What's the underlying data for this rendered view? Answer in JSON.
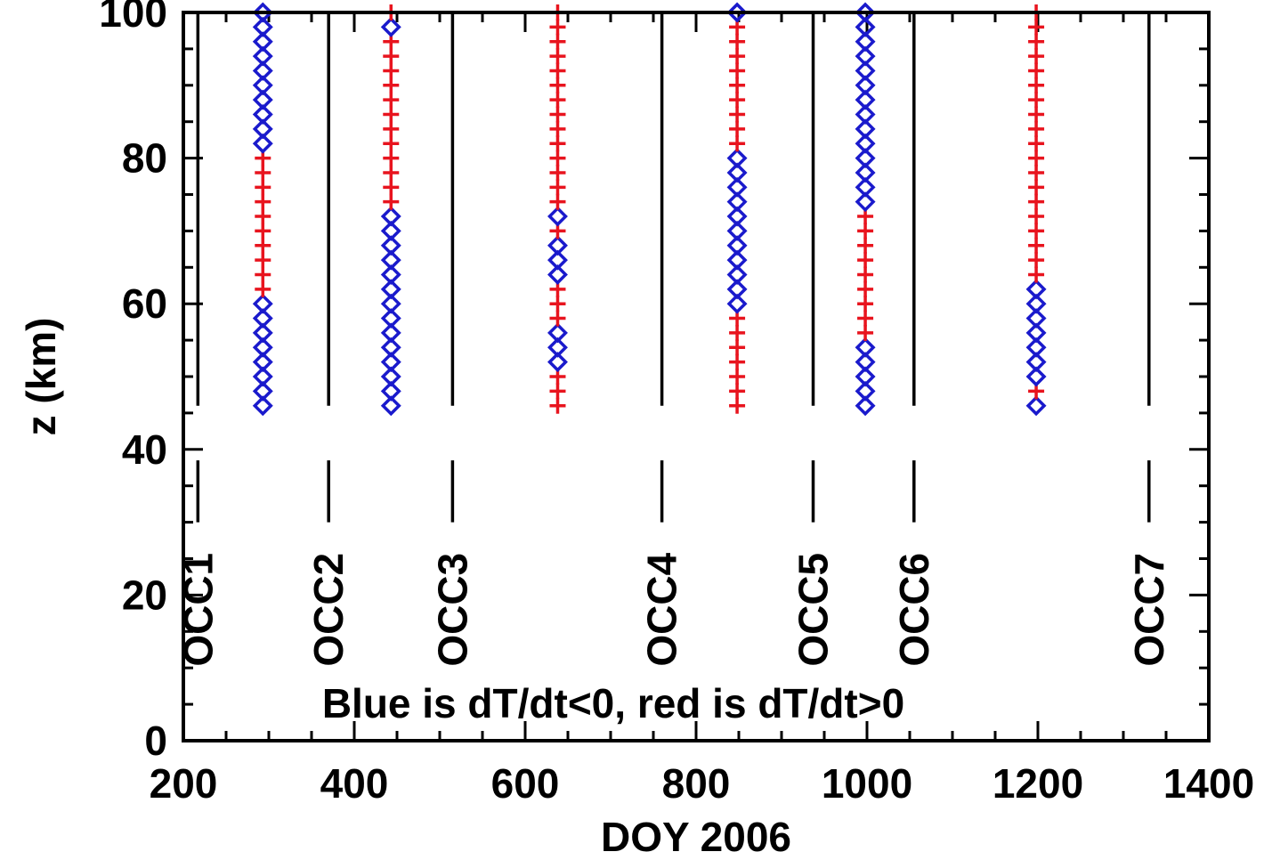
{
  "chart_data": {
    "type": "scatter",
    "title": "",
    "xlabel": "DOY 2006",
    "ylabel": "z (km)",
    "xlim": [
      200,
      1400
    ],
    "ylim": [
      0,
      100
    ],
    "xticks": [
      200,
      400,
      600,
      800,
      1000,
      1200,
      1400
    ],
    "yticks": [
      0,
      20,
      40,
      60,
      80,
      100
    ],
    "x_tick_labels": [
      "200",
      "400",
      "600",
      "800",
      "1000",
      "1200",
      "1400"
    ],
    "y_tick_labels": [
      "0",
      "20",
      "40",
      "60",
      "80",
      "100"
    ],
    "annotation": "Blue is dT/dt<0, red is dT/dt>0",
    "colors": {
      "negative": "#1a1acc",
      "positive": "#e8141e",
      "axis": "#000000"
    },
    "occultations": [
      {
        "label": "OCC1",
        "x": 217
      },
      {
        "label": "OCC2",
        "x": 370
      },
      {
        "label": "OCC3",
        "x": 515
      },
      {
        "label": "OCC4",
        "x": 760
      },
      {
        "label": "OCC5",
        "x": 937
      },
      {
        "label": "OCC6",
        "x": 1055
      },
      {
        "label": "OCC7",
        "x": 1330
      }
    ],
    "series": [
      {
        "x": 293,
        "segments": [
          {
            "from": 46,
            "to": 60,
            "sign": "negative"
          },
          {
            "from": 62,
            "to": 80,
            "sign": "positive"
          },
          {
            "from": 82,
            "to": 100,
            "sign": "negative"
          }
        ]
      },
      {
        "x": 443,
        "segments": [
          {
            "from": 46,
            "to": 72,
            "sign": "negative"
          },
          {
            "from": 74,
            "to": 96,
            "sign": "positive"
          },
          {
            "from": 98,
            "to": 98,
            "sign": "negative"
          },
          {
            "from": 100,
            "to": 100,
            "sign": "positive"
          }
        ]
      },
      {
        "x": 638,
        "segments": [
          {
            "from": 46,
            "to": 50,
            "sign": "positive"
          },
          {
            "from": 52,
            "to": 56,
            "sign": "negative"
          },
          {
            "from": 58,
            "to": 62,
            "sign": "positive"
          },
          {
            "from": 64,
            "to": 68,
            "sign": "negative"
          },
          {
            "from": 70,
            "to": 70,
            "sign": "positive"
          },
          {
            "from": 72,
            "to": 72,
            "sign": "negative"
          },
          {
            "from": 74,
            "to": 100,
            "sign": "positive"
          }
        ]
      },
      {
        "x": 848,
        "segments": [
          {
            "from": 46,
            "to": 58,
            "sign": "positive"
          },
          {
            "from": 60,
            "to": 80,
            "sign": "negative"
          },
          {
            "from": 82,
            "to": 98,
            "sign": "positive"
          },
          {
            "from": 100,
            "to": 100,
            "sign": "negative"
          }
        ]
      },
      {
        "x": 998,
        "segments": [
          {
            "from": 46,
            "to": 54,
            "sign": "negative"
          },
          {
            "from": 56,
            "to": 72,
            "sign": "positive"
          },
          {
            "from": 74,
            "to": 100,
            "sign": "negative"
          }
        ]
      },
      {
        "x": 1198,
        "segments": [
          {
            "from": 46,
            "to": 46,
            "sign": "negative"
          },
          {
            "from": 48,
            "to": 48,
            "sign": "positive"
          },
          {
            "from": 50,
            "to": 62,
            "sign": "negative"
          },
          {
            "from": 64,
            "to": 100,
            "sign": "positive"
          }
        ]
      }
    ]
  }
}
